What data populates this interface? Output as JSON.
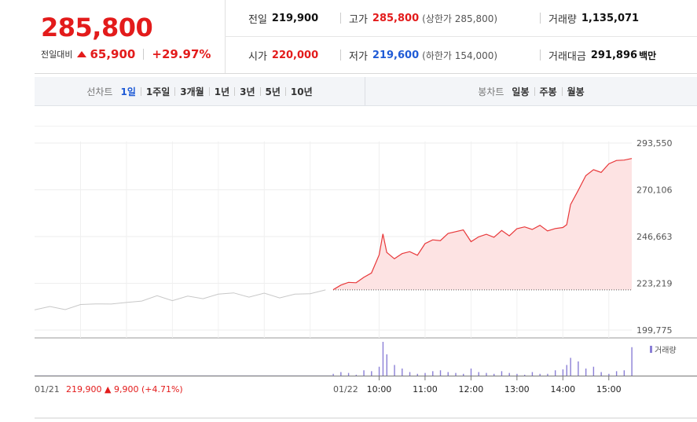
{
  "summary": {
    "price": "285,800",
    "change_label": "전일대비",
    "change_value": "65,900",
    "change_percent": "+29.97%",
    "prev_close": {
      "label": "전일",
      "value": "219,900"
    },
    "high": {
      "label": "고가",
      "value": "285,800",
      "note": "(상한가 285,800)"
    },
    "volume": {
      "label": "거래량",
      "value": "1,135,071"
    },
    "open": {
      "label": "시가",
      "value": "220,000"
    },
    "low": {
      "label": "저가",
      "value": "219,600",
      "note": "(하한가 154,000)"
    },
    "trade_value": {
      "label": "거래대금",
      "value": "291,896",
      "unit": "백만"
    }
  },
  "tabs": {
    "line_title": "선차트",
    "line_items": [
      "1일",
      "1주일",
      "3개월",
      "1년",
      "3년",
      "5년",
      "10년"
    ],
    "line_active": "1일",
    "candle_title": "봉차트",
    "candle_items": [
      "일봉",
      "주봉",
      "월봉"
    ]
  },
  "colors": {
    "up": "#e31b1b",
    "down": "#1f5bd6",
    "today_line": "#e8383a",
    "prev_line": "#c8c8c8",
    "area_fill": "#fde3e3",
    "volume_bar": "#8a7fd6"
  },
  "chart_data": [
    {
      "type": "line",
      "title": "",
      "ylim": [
        199775,
        293550
      ],
      "y_ticks": [
        "293,550",
        "270,106",
        "246,663",
        "223,219",
        "199,775"
      ],
      "x_ticks": [
        "10:00",
        "11:00",
        "12:00",
        "13:00",
        "14:00",
        "15:00"
      ],
      "reference_line": 219900,
      "grid": true,
      "series": [
        {
          "day": "01/21",
          "x": [
            "09:00",
            "09:20",
            "09:40",
            "10:00",
            "10:20",
            "10:40",
            "11:00",
            "11:20",
            "11:40",
            "12:00",
            "12:20",
            "12:40",
            "13:00",
            "13:20",
            "13:40",
            "14:00",
            "14:20",
            "14:40",
            "15:00",
            "15:20"
          ],
          "values": [
            209900,
            211600,
            210000,
            212600,
            212900,
            212800,
            213600,
            214300,
            217000,
            214500,
            216800,
            215500,
            217800,
            218400,
            216300,
            218300,
            215900,
            217800,
            218000,
            219900
          ]
        },
        {
          "day": "01/22",
          "x": [
            "09:00",
            "09:10",
            "09:20",
            "09:30",
            "09:40",
            "09:50",
            "10:00",
            "10:05",
            "10:10",
            "10:20",
            "10:30",
            "10:40",
            "10:50",
            "11:00",
            "11:10",
            "11:20",
            "11:30",
            "11:40",
            "11:50",
            "12:00",
            "12:10",
            "12:20",
            "12:30",
            "12:40",
            "12:50",
            "13:00",
            "13:10",
            "13:20",
            "13:30",
            "13:40",
            "13:50",
            "14:00",
            "14:05",
            "14:10",
            "14:20",
            "14:30",
            "14:40",
            "14:50",
            "15:00",
            "15:10",
            "15:20",
            "15:30"
          ],
          "values": [
            220000,
            222300,
            223700,
            223500,
            226200,
            228400,
            237500,
            248000,
            238700,
            235500,
            238100,
            239100,
            237300,
            243100,
            245000,
            244600,
            248200,
            249100,
            250000,
            244100,
            246500,
            247800,
            246300,
            249700,
            247000,
            250600,
            251500,
            250200,
            252300,
            249500,
            250700,
            251200,
            252600,
            262700,
            269800,
            277200,
            280200,
            278800,
            283100,
            284800,
            285000,
            285800
          ]
        }
      ]
    },
    {
      "type": "bar",
      "title": "",
      "legend": [
        "거래량"
      ],
      "x_ticks": [
        "10:00",
        "11:00",
        "12:00",
        "13:00",
        "14:00",
        "15:00"
      ],
      "series": [
        {
          "day": "01/22",
          "name": "거래량",
          "values": [
            10,
            20,
            15,
            5,
            30,
            25,
            50,
            190,
            120,
            60,
            40,
            20,
            10,
            15,
            25,
            30,
            20,
            15,
            10,
            40,
            20,
            15,
            10,
            25,
            15,
            10,
            5,
            20,
            10,
            10,
            30,
            35,
            60,
            100,
            80,
            40,
            50,
            20,
            10,
            25,
            30,
            160
          ]
        }
      ]
    }
  ],
  "footer": {
    "prev_date": "01/21",
    "prev_price": "219,900",
    "prev_change": "▲ 9,900 (+4.71%)",
    "today_date": "01/22"
  }
}
